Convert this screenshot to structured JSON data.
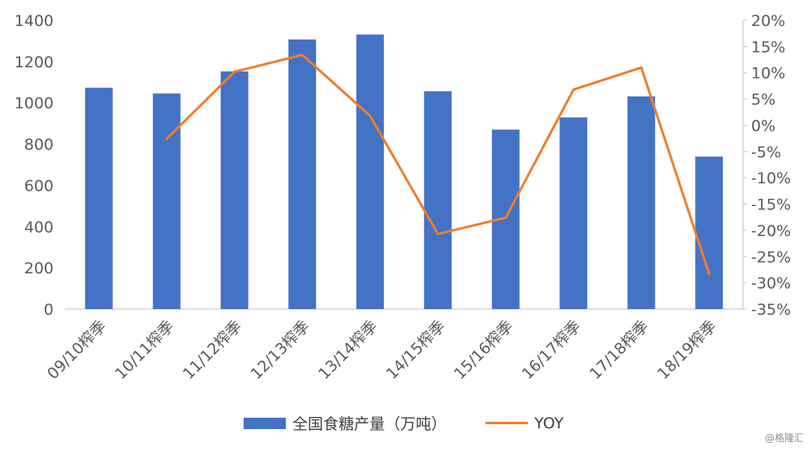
{
  "chart_data": {
    "type": "bar+line",
    "categories": [
      "09/10榨季",
      "10/11榨季",
      "11/12榨季",
      "12/13榨季",
      "13/14榨季",
      "14/15榨季",
      "15/16榨季",
      "16/17榨季",
      "17/18榨季",
      "18/19榨季"
    ],
    "series": [
      {
        "name": "全国食糖产量（万吨）",
        "type": "bar",
        "axis": "left",
        "color": "#4472C4",
        "values": [
          1073,
          1045,
          1152,
          1307,
          1331,
          1056,
          870,
          929,
          1031,
          739
        ]
      },
      {
        "name": "YOY",
        "type": "line",
        "axis": "right",
        "color": "#ED7D31",
        "values": [
          null,
          -2.6,
          10.2,
          13.4,
          1.8,
          -20.7,
          -17.6,
          6.8,
          11.0,
          -28.3
        ]
      }
    ],
    "y_left": {
      "ticks": [
        "0",
        "200",
        "400",
        "600",
        "800",
        "1000",
        "1200",
        "1400"
      ],
      "ylim": [
        0,
        1400
      ]
    },
    "y_right": {
      "ticks": [
        "-35%",
        "-30%",
        "-25%",
        "-20%",
        "-15%",
        "-10%",
        "-5%",
        "0%",
        "5%",
        "10%",
        "15%",
        "20%"
      ],
      "ylim": [
        -35,
        20
      ]
    },
    "grid": false,
    "legend_position": "bottom"
  },
  "watermark": "@格隆汇"
}
